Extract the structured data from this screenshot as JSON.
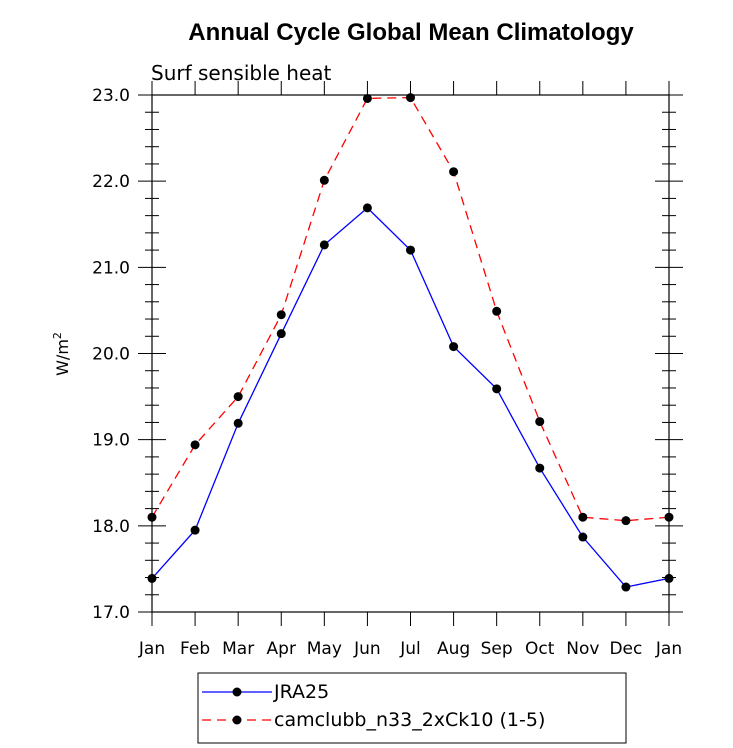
{
  "chart_data": {
    "type": "line",
    "title": "Annual Cycle Global Mean Climatology",
    "subtitle": "Surf sensible heat",
    "ylabel_base": "W/m",
    "ylabel_sup": "2",
    "categories": [
      "Jan",
      "Feb",
      "Mar",
      "Apr",
      "May",
      "Jun",
      "Jul",
      "Aug",
      "Sep",
      "Oct",
      "Nov",
      "Dec",
      "Jan"
    ],
    "ylim": [
      17.0,
      23.0
    ],
    "yticks": [
      "17.0",
      "18.0",
      "19.0",
      "20.0",
      "21.0",
      "22.0",
      "23.0"
    ],
    "grid": false,
    "legend_position": "bottom-left",
    "series": [
      {
        "name": "JRA25",
        "color": "#0000ff",
        "dash": "solid",
        "values": [
          17.39,
          17.95,
          19.19,
          20.23,
          21.26,
          21.69,
          21.2,
          20.08,
          19.59,
          18.67,
          17.87,
          17.29,
          17.39
        ]
      },
      {
        "name": "camclubb_n33_2xCk10 (1-5)",
        "color": "#ff0000",
        "dash": "dashed",
        "values": [
          18.1,
          18.94,
          19.5,
          20.45,
          22.01,
          22.96,
          22.97,
          22.11,
          20.49,
          19.21,
          18.1,
          18.06,
          18.1
        ]
      }
    ]
  }
}
